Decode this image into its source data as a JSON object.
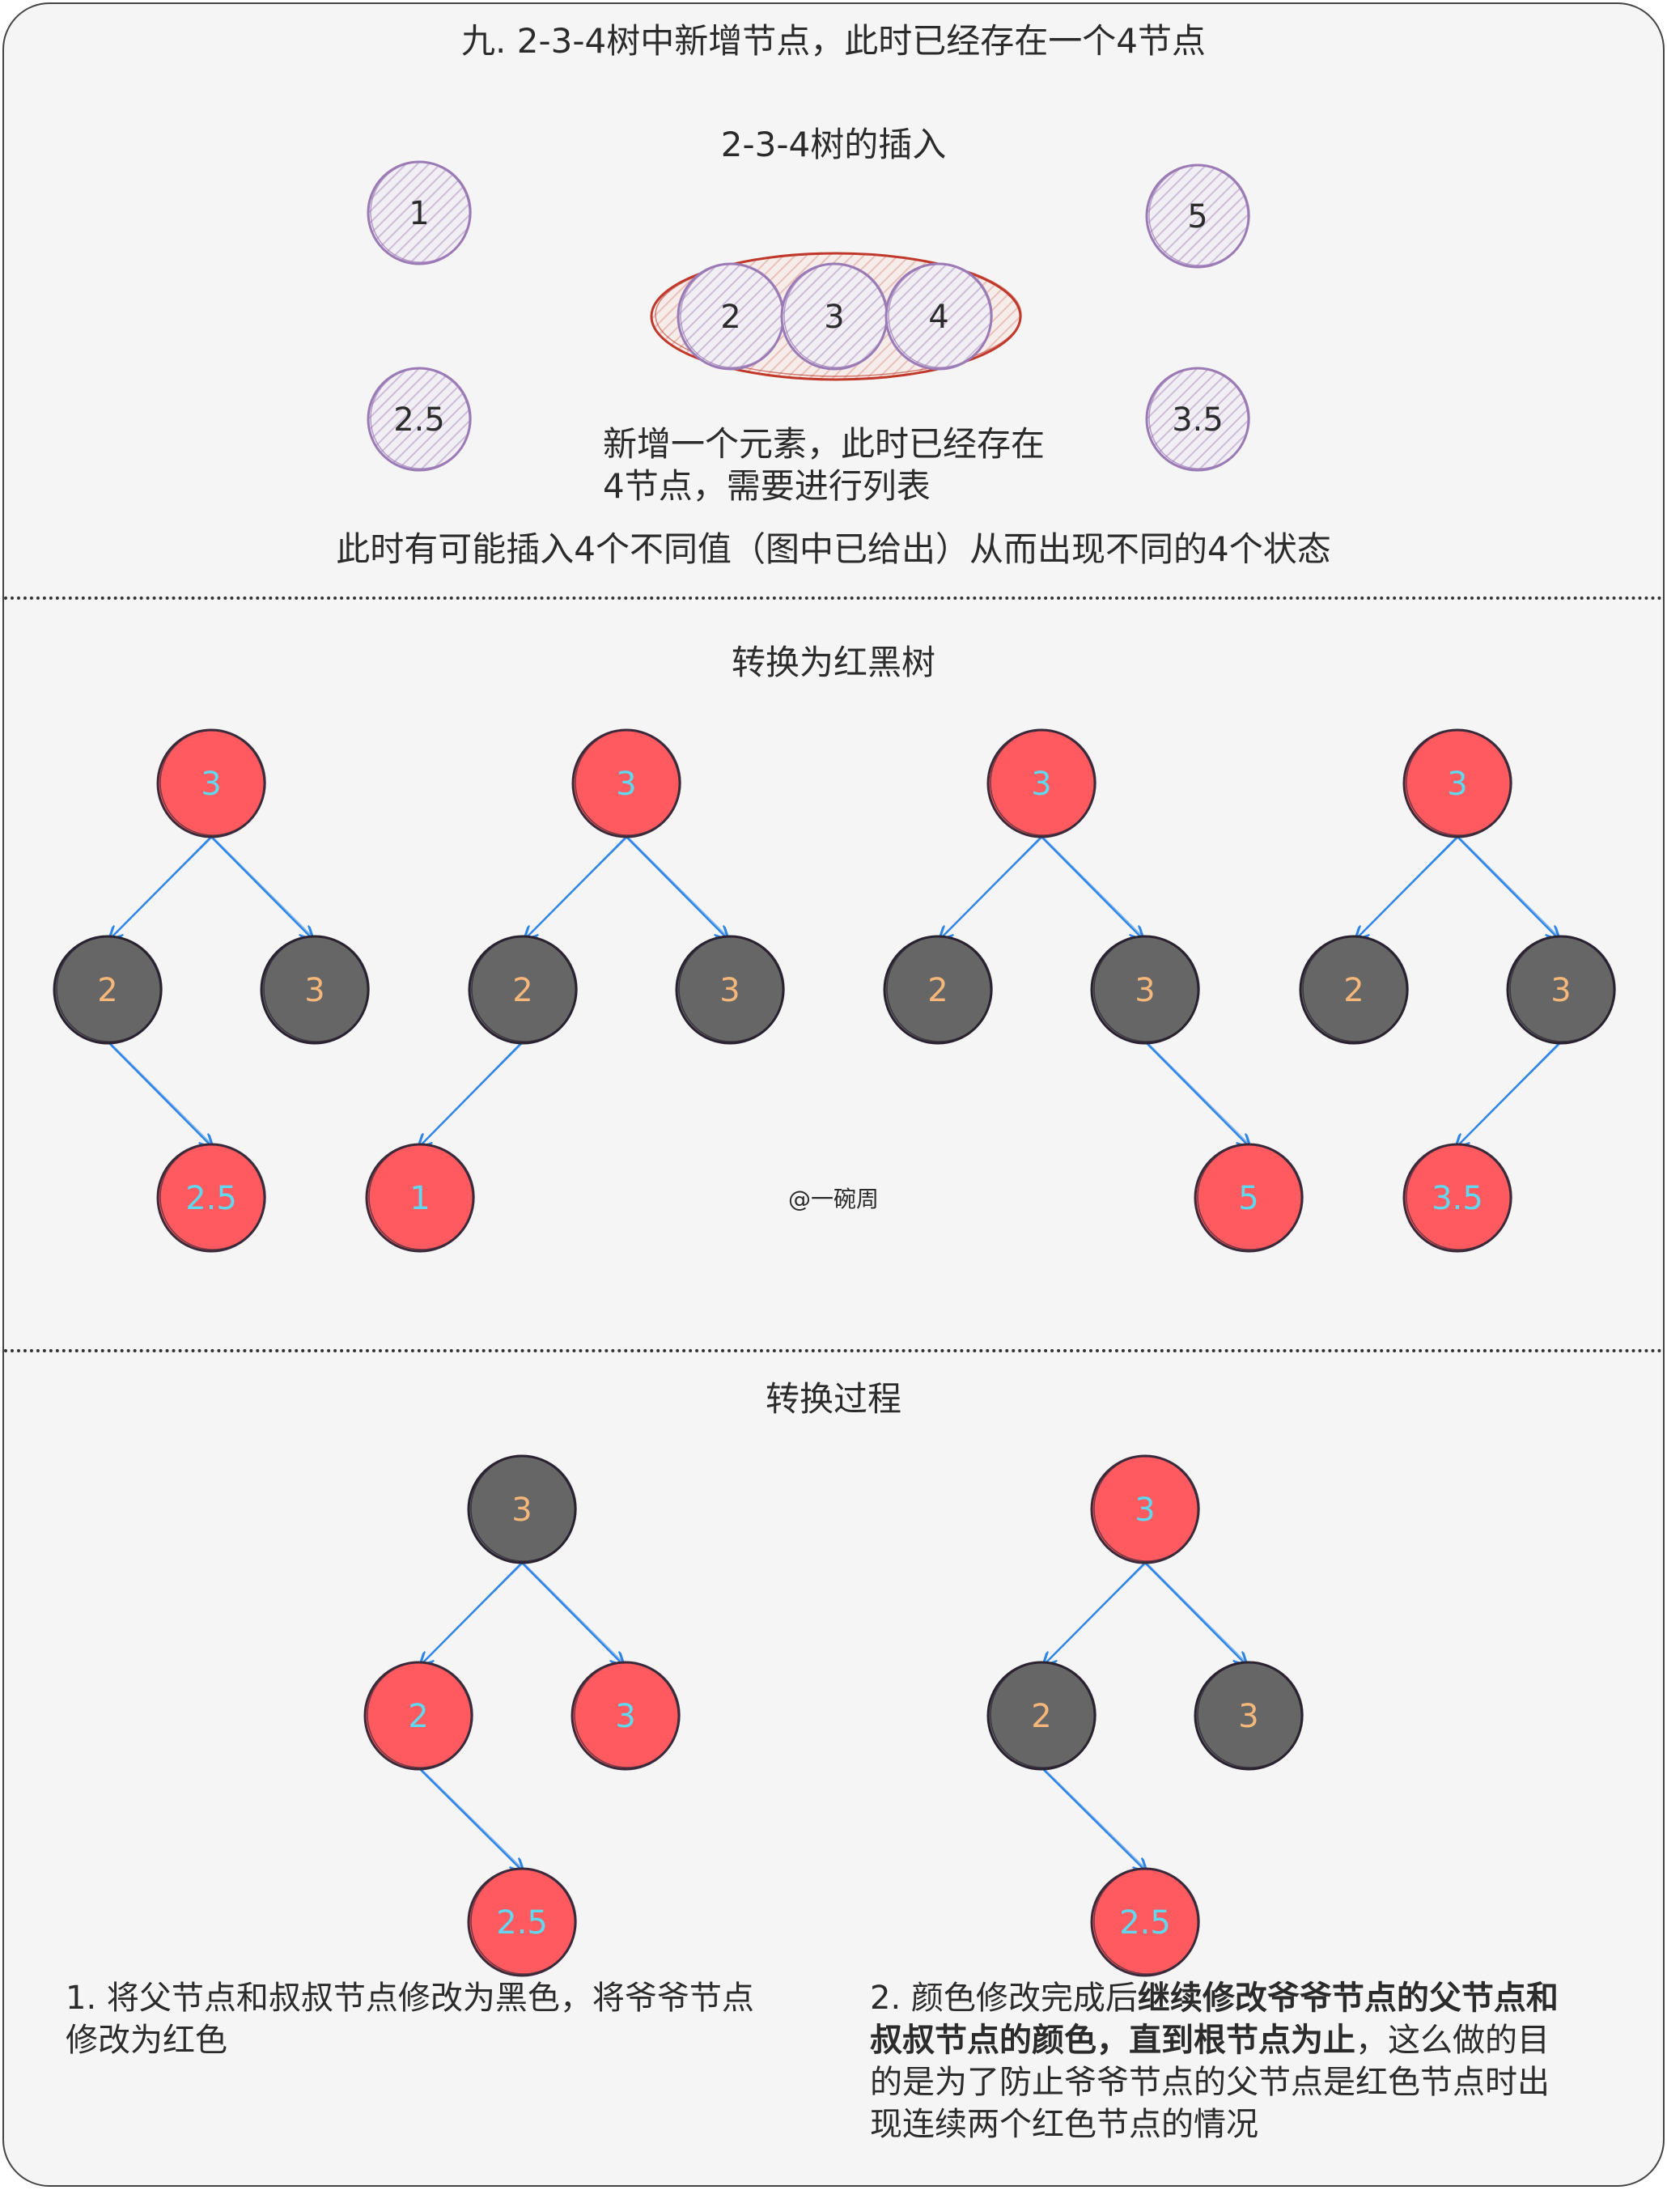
{
  "header": {
    "title": "九. 2-3-4树中新增节点，此时已经存在一个4节点",
    "insert_title": "2-3-4树的插入",
    "note_new_element": "新增一个元素，此时已经存在",
    "note_split": "4节点，需要进行列表",
    "possibilities": "此时有可能插入4个不同值（图中已给出）从而出现不同的4个状态"
  },
  "four_node": {
    "keys": [
      "2",
      "3",
      "4"
    ]
  },
  "candidates": [
    "1",
    "2.5",
    "5",
    "3.5"
  ],
  "convert": {
    "title": "转换为红黑树",
    "trees": [
      {
        "root": "3",
        "left": "2",
        "right": "3",
        "inserted": "2.5"
      },
      {
        "root": "3",
        "left": "2",
        "right": "3",
        "inserted": "1"
      },
      {
        "root": "3",
        "left": "2",
        "right": "3",
        "inserted": "5"
      },
      {
        "root": "3",
        "left": "2",
        "right": "3",
        "inserted": "3.5"
      }
    ],
    "watermark": "@一碗周"
  },
  "process": {
    "title": "转换过程",
    "step1": {
      "root": "3",
      "left": "2",
      "right": "3",
      "inserted": "2.5",
      "text": "1. 将父节点和叔叔节点修改为黑色，将爷爷节点修改为红色"
    },
    "step2": {
      "root": "3",
      "left": "2",
      "right": "3",
      "inserted": "2.5",
      "text_a": "2. 颜色修改完成后",
      "text_bold": "继续修改爷爷节点的父节点和叔叔节点的颜色，直到根节点为止",
      "text_b": "，这么做的目的是为了防止爷爷节点的父节点是红色节点时出现连续两个红色节点的情况"
    }
  },
  "colors": {
    "red_node": "#ff5a5f",
    "black_node": "#666666",
    "edge": "#2f86e6",
    "red_text": "#5fd8f0",
    "black_text": "#f5b87a",
    "hatch_node": "#9b7bb5",
    "four_node_outline": "#c0392b"
  }
}
